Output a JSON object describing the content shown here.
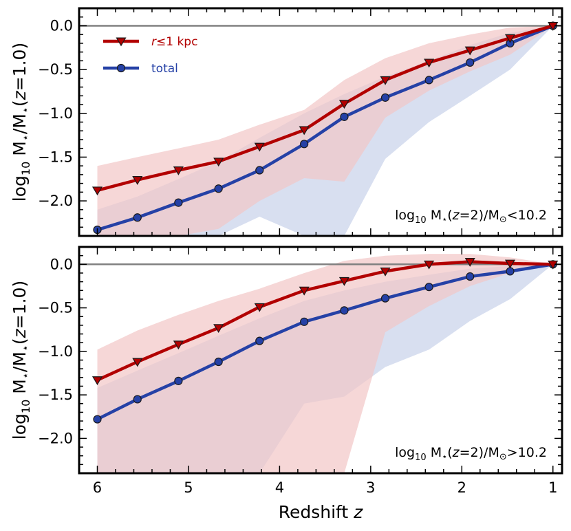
{
  "chart_data": {
    "type": "line",
    "x": [
      6.0,
      5.56,
      5.11,
      4.67,
      4.22,
      3.73,
      3.29,
      2.84,
      2.36,
      1.91,
      1.47,
      1.0
    ],
    "xlabel_text": "Redshift ",
    "xlabel_var": "z",
    "xlim": [
      6.2,
      0.9
    ],
    "x_ticks": [
      6,
      5,
      4,
      3,
      2,
      1
    ],
    "ylim": [
      -2.4,
      0.2
    ],
    "y_ticks": [
      0.0,
      -0.5,
      -1.0,
      -1.5,
      -2.0
    ],
    "y_tick_labels": [
      "0.0",
      "−0.5",
      "−1.0",
      "−1.5",
      "−2.0"
    ],
    "ylabel": {
      "pre": "log",
      "sub1": "10",
      "m1": " M",
      "star1": "⋆",
      "mid": "/M",
      "star2": "⋆",
      "open": "(",
      "var": "z",
      "close": "=1.0)"
    },
    "reference_line": 0.0,
    "legend": {
      "position": "top-left",
      "entries": [
        {
          "label_var": "r",
          "label_rest": "≤1 kpc",
          "color": "#b20000",
          "marker": "triangle-down"
        },
        {
          "label_var": "",
          "label_rest": "total",
          "color": "#2541a6",
          "marker": "circle"
        }
      ]
    },
    "panels": [
      {
        "annotation": {
          "pre": "log",
          "sub": "10",
          "m": " M",
          "star": "⋆",
          "open": "(",
          "var": "z",
          "mid": "=2)/M",
          "sun": "⊙",
          "rest": "<10.2"
        },
        "series": [
          {
            "name": "r≤1 kpc",
            "color": "#b20000",
            "band_color": "#f2c6c6",
            "marker": "triangle-down",
            "values": [
              -1.88,
              -1.76,
              -1.65,
              -1.55,
              -1.38,
              -1.19,
              -0.89,
              -0.62,
              -0.42,
              -0.28,
              -0.14,
              0.0
            ],
            "band_upper": [
              -1.6,
              -1.5,
              -1.4,
              -1.3,
              -1.13,
              -0.96,
              -0.62,
              -0.37,
              -0.2,
              -0.1,
              -0.02,
              0.0
            ],
            "band_lower": [
              -2.4,
              -2.4,
              -2.4,
              -2.32,
              -2.0,
              -1.74,
              -1.78,
              -1.05,
              -0.74,
              -0.52,
              -0.33,
              0.0
            ]
          },
          {
            "name": "total",
            "color": "#2541a6",
            "band_color": "#c7d1ea",
            "marker": "circle",
            "values": [
              -2.33,
              -2.19,
              -2.02,
              -1.86,
              -1.65,
              -1.35,
              -1.04,
              -0.82,
              -0.62,
              -0.42,
              -0.2,
              0.0
            ],
            "band_upper": [
              -2.1,
              -1.95,
              -1.75,
              -1.55,
              -1.28,
              -1.0,
              -0.78,
              -0.58,
              -0.4,
              -0.22,
              -0.08,
              0.0
            ],
            "band_lower": [
              -2.4,
              -2.4,
              -2.4,
              -2.4,
              -2.18,
              -2.4,
              -2.4,
              -1.52,
              -1.1,
              -0.8,
              -0.5,
              0.0
            ]
          }
        ]
      },
      {
        "annotation": {
          "pre": "log",
          "sub": "10",
          "m": " M",
          "star": "⋆",
          "open": "(",
          "var": "z",
          "mid": "=2)/M",
          "sun": "⊙",
          "rest": ">10.2"
        },
        "series": [
          {
            "name": "r≤1 kpc",
            "color": "#b20000",
            "band_color": "#f2c6c6",
            "marker": "triangle-down",
            "values": [
              -1.33,
              -1.12,
              -0.92,
              -0.73,
              -0.49,
              -0.3,
              -0.19,
              -0.08,
              0.0,
              0.03,
              0.01,
              0.0
            ],
            "band_upper": [
              -0.98,
              -0.76,
              -0.58,
              -0.42,
              -0.28,
              -0.1,
              0.04,
              0.1,
              0.12,
              0.12,
              0.08,
              0.0
            ],
            "band_lower": [
              -2.4,
              -2.4,
              -2.4,
              -2.4,
              -2.4,
              -2.4,
              -2.4,
              -0.78,
              -0.48,
              -0.25,
              -0.1,
              0.0
            ]
          },
          {
            "name": "total",
            "color": "#2541a6",
            "band_color": "#c7d1ea",
            "marker": "circle",
            "values": [
              -1.78,
              -1.55,
              -1.34,
              -1.12,
              -0.88,
              -0.66,
              -0.53,
              -0.39,
              -0.26,
              -0.14,
              -0.08,
              0.0
            ],
            "band_upper": [
              -1.42,
              -1.22,
              -1.02,
              -0.82,
              -0.62,
              -0.42,
              -0.3,
              -0.2,
              -0.12,
              -0.05,
              -0.02,
              0.0
            ],
            "band_lower": [
              -2.4,
              -2.4,
              -2.4,
              -2.4,
              -2.4,
              -1.6,
              -1.52,
              -1.18,
              -0.98,
              -0.65,
              -0.4,
              0.0
            ]
          }
        ]
      }
    ]
  }
}
